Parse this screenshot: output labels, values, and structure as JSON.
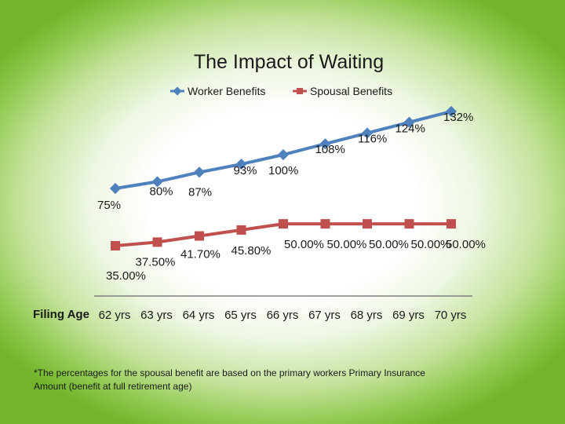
{
  "chart_data": {
    "type": "line",
    "title": "The Impact of Waiting",
    "xlabel": "Filing Age",
    "categories": [
      "62 yrs",
      "63 yrs",
      "64 yrs",
      "65 yrs",
      "66 yrs",
      "67 yrs",
      "68 yrs",
      "69 yrs",
      "70 yrs"
    ],
    "legend_position": "top",
    "grid": false,
    "series": [
      {
        "name": "Worker Benefits",
        "color": "#4f81bd",
        "marker": "diamond",
        "values": [
          75,
          80,
          87,
          93,
          100,
          108,
          116,
          124,
          132
        ],
        "labels": [
          "75%",
          "80%",
          "87%",
          "93%",
          "100%",
          "108%",
          "116%",
          "124%",
          "132%"
        ]
      },
      {
        "name": "Spousal Benefits",
        "color": "#c0504d",
        "marker": "square",
        "values": [
          35.0,
          37.5,
          41.7,
          45.8,
          50.0,
          50.0,
          50.0,
          50.0,
          50.0
        ],
        "labels": [
          "35.00%",
          "37.50%",
          "41.70%",
          "45.80%",
          "50.00%",
          "50.00%",
          "50.00%",
          "50.00%",
          "50.00%"
        ]
      }
    ]
  },
  "footnote": "*The percentages for the spousal benefit are based on the primary workers Primary Insurance Amount (benefit at full retirement age)"
}
